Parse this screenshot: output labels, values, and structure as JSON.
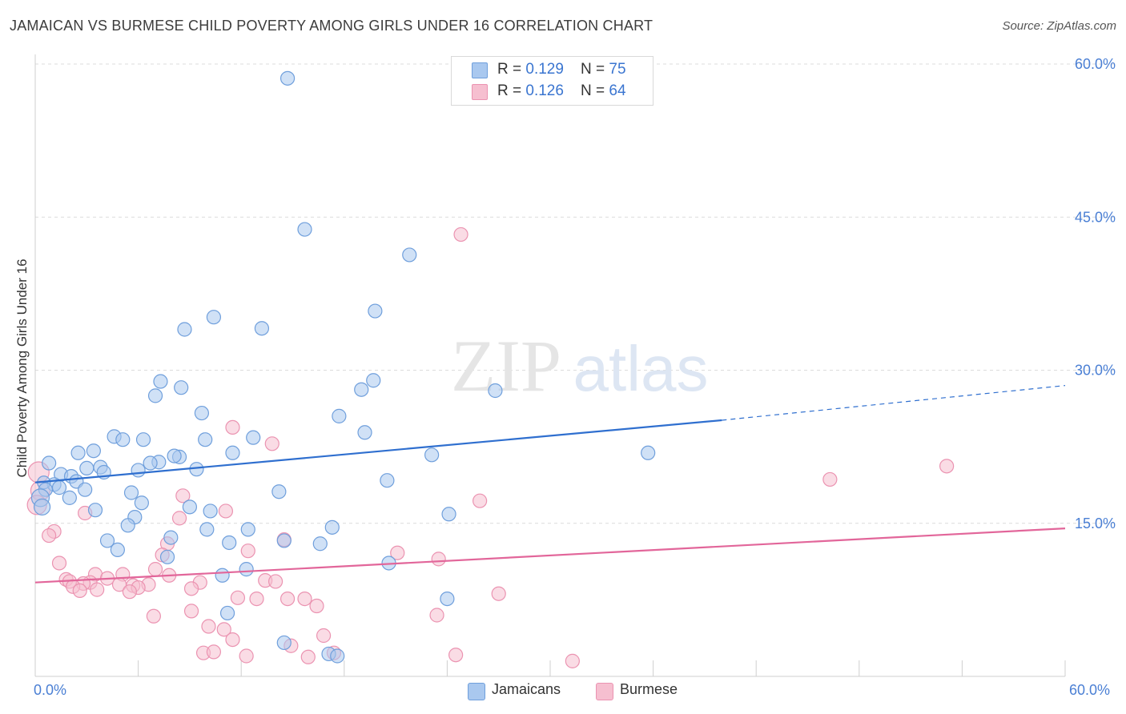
{
  "title": "JAMAICAN VS BURMESE CHILD POVERTY AMONG GIRLS UNDER 16 CORRELATION CHART",
  "source": "Source: ZipAtlas.com",
  "watermark": {
    "part1": "ZIP",
    "part2": "atlas"
  },
  "legend_top": [
    {
      "r_label": "R = ",
      "r_value": "0.129",
      "n_label": "N = ",
      "n_value": "75"
    },
    {
      "r_label": "R = ",
      "r_value": "0.126",
      "n_label": "N = ",
      "n_value": "64"
    }
  ],
  "legend_bottom": [
    "Jamaicans",
    "Burmese"
  ],
  "colors": {
    "jamaicans_fill": "#a9c8ef",
    "jamaicans_stroke": "#6f9fdc",
    "jamaicans_line": "#2f6fcf",
    "burmese_fill": "#f6bfd0",
    "burmese_stroke": "#eb93b1",
    "burmese_line": "#e2669a",
    "axis_label": "#4a7fd4",
    "grid": "#dcdcdc"
  },
  "chart_data": {
    "type": "scatter",
    "title": "JAMAICAN VS BURMESE CHILD POVERTY AMONG GIRLS UNDER 16 CORRELATION CHART",
    "xlabel": "",
    "ylabel": "Child Poverty Among Girls Under 16",
    "xlim": [
      0,
      60
    ],
    "ylim": [
      0,
      60
    ],
    "x_tick_labels": [
      "0.0%",
      "60.0%"
    ],
    "y_tick_labels": [
      "15.0%",
      "30.0%",
      "45.0%",
      "60.0%"
    ],
    "y_ticks": [
      15,
      30,
      45,
      60
    ],
    "grid": "horizontal dashed",
    "legend_placement": "top-center",
    "series": [
      {
        "name": "Jamaicans",
        "r": 0.129,
        "n": 75,
        "trend": {
          "x0": 0,
          "y0": 19.0,
          "x1": 40,
          "y1": 25.1,
          "dash_x1": 60,
          "dash_y1": 28.5
        },
        "points": [
          [
            14.7,
            58.6
          ],
          [
            15.7,
            43.8
          ],
          [
            21.8,
            41.3
          ],
          [
            19.8,
            35.8
          ],
          [
            10.4,
            35.2
          ],
          [
            8.7,
            34.0
          ],
          [
            13.2,
            34.1
          ],
          [
            7.3,
            28.9
          ],
          [
            8.5,
            28.3
          ],
          [
            7.0,
            27.5
          ],
          [
            19.7,
            29.0
          ],
          [
            19.0,
            28.1
          ],
          [
            26.8,
            28.0
          ],
          [
            9.7,
            25.8
          ],
          [
            17.7,
            25.5
          ],
          [
            19.2,
            23.9
          ],
          [
            12.7,
            23.4
          ],
          [
            9.9,
            23.2
          ],
          [
            6.3,
            23.2
          ],
          [
            4.6,
            23.5
          ],
          [
            5.1,
            23.2
          ],
          [
            3.4,
            22.1
          ],
          [
            2.5,
            21.9
          ],
          [
            11.5,
            21.9
          ],
          [
            8.4,
            21.5
          ],
          [
            8.1,
            21.6
          ],
          [
            7.2,
            21.0
          ],
          [
            6.7,
            20.9
          ],
          [
            23.1,
            21.7
          ],
          [
            35.7,
            21.9
          ],
          [
            0.8,
            20.9
          ],
          [
            1.5,
            19.8
          ],
          [
            2.1,
            19.6
          ],
          [
            3.0,
            20.4
          ],
          [
            3.8,
            20.5
          ],
          [
            4.0,
            20.0
          ],
          [
            6.0,
            20.2
          ],
          [
            9.4,
            20.3
          ],
          [
            2.4,
            19.1
          ],
          [
            1.1,
            18.8
          ],
          [
            0.5,
            19.0
          ],
          [
            0.6,
            18.3
          ],
          [
            1.4,
            18.5
          ],
          [
            2.9,
            18.3
          ],
          [
            5.6,
            18.0
          ],
          [
            14.2,
            18.1
          ],
          [
            20.5,
            19.2
          ],
          [
            2.0,
            17.5
          ],
          [
            6.2,
            17.0
          ],
          [
            0.3,
            17.5
          ],
          [
            0.4,
            16.6
          ],
          [
            3.5,
            16.3
          ],
          [
            9.0,
            16.6
          ],
          [
            10.2,
            16.2
          ],
          [
            24.1,
            15.9
          ],
          [
            5.8,
            15.6
          ],
          [
            5.4,
            14.8
          ],
          [
            10.0,
            14.4
          ],
          [
            12.4,
            14.4
          ],
          [
            17.3,
            14.6
          ],
          [
            7.9,
            13.6
          ],
          [
            4.2,
            13.3
          ],
          [
            14.5,
            13.3
          ],
          [
            11.3,
            13.1
          ],
          [
            16.6,
            13.0
          ],
          [
            4.8,
            12.4
          ],
          [
            7.7,
            11.7
          ],
          [
            20.6,
            11.1
          ],
          [
            12.3,
            10.5
          ],
          [
            10.9,
            9.9
          ],
          [
            24.0,
            7.6
          ],
          [
            11.2,
            6.2
          ],
          [
            14.5,
            3.3
          ],
          [
            17.1,
            2.2
          ],
          [
            17.6,
            2.0
          ]
        ]
      },
      {
        "name": "Burmese",
        "r": 0.126,
        "n": 64,
        "trend": {
          "x0": 0,
          "y0": 9.2,
          "x1": 60,
          "y1": 14.5
        },
        "points": [
          [
            24.8,
            43.3
          ],
          [
            11.5,
            24.4
          ],
          [
            13.8,
            22.8
          ],
          [
            53.1,
            20.6
          ],
          [
            46.3,
            19.3
          ],
          [
            0.2,
            20.0
          ],
          [
            0.3,
            18.2
          ],
          [
            0.1,
            16.8
          ],
          [
            8.6,
            17.7
          ],
          [
            25.9,
            17.2
          ],
          [
            11.1,
            16.2
          ],
          [
            2.9,
            16.0
          ],
          [
            8.4,
            15.5
          ],
          [
            1.1,
            14.2
          ],
          [
            0.8,
            13.8
          ],
          [
            14.5,
            13.4
          ],
          [
            7.7,
            13.0
          ],
          [
            12.4,
            12.3
          ],
          [
            21.1,
            12.1
          ],
          [
            7.4,
            11.9
          ],
          [
            23.5,
            11.5
          ],
          [
            1.4,
            11.1
          ],
          [
            7.0,
            10.5
          ],
          [
            5.1,
            10.0
          ],
          [
            3.5,
            10.0
          ],
          [
            7.8,
            9.9
          ],
          [
            4.2,
            9.6
          ],
          [
            13.4,
            9.4
          ],
          [
            14.0,
            9.3
          ],
          [
            3.2,
            9.2
          ],
          [
            9.6,
            9.2
          ],
          [
            1.8,
            9.5
          ],
          [
            2.0,
            9.3
          ],
          [
            2.8,
            9.1
          ],
          [
            4.9,
            9.0
          ],
          [
            6.6,
            9.0
          ],
          [
            5.7,
            8.9
          ],
          [
            2.2,
            8.8
          ],
          [
            9.1,
            8.6
          ],
          [
            3.6,
            8.5
          ],
          [
            6.0,
            8.7
          ],
          [
            2.6,
            8.4
          ],
          [
            5.5,
            8.3
          ],
          [
            27.0,
            8.1
          ],
          [
            11.8,
            7.7
          ],
          [
            12.9,
            7.6
          ],
          [
            14.7,
            7.6
          ],
          [
            15.7,
            7.6
          ],
          [
            16.4,
            6.9
          ],
          [
            9.1,
            6.4
          ],
          [
            23.4,
            6.0
          ],
          [
            6.9,
            5.9
          ],
          [
            10.1,
            4.9
          ],
          [
            11.0,
            4.6
          ],
          [
            16.8,
            4.0
          ],
          [
            11.5,
            3.6
          ],
          [
            14.9,
            3.0
          ],
          [
            17.4,
            2.3
          ],
          [
            9.8,
            2.3
          ],
          [
            10.4,
            2.4
          ],
          [
            12.3,
            2.0
          ],
          [
            15.9,
            1.9
          ],
          [
            24.5,
            2.1
          ],
          [
            31.3,
            1.5
          ]
        ]
      }
    ]
  }
}
